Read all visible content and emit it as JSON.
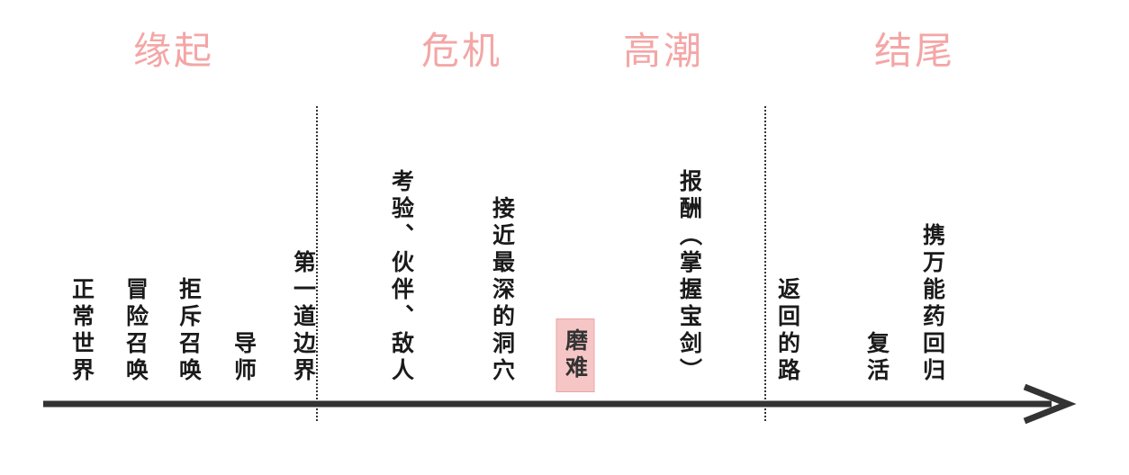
{
  "colors": {
    "stage": "#f4a6a6",
    "highlight": "#f6c6c6",
    "axis": "#333333",
    "text": "#1a1a1a"
  },
  "stages": [
    {
      "label": "缘起"
    },
    {
      "label": "危机"
    },
    {
      "label": "高潮"
    },
    {
      "label": "结尾"
    }
  ],
  "events": [
    {
      "lines": [
        "正常世界"
      ]
    },
    {
      "lines": [
        "冒险召唤"
      ]
    },
    {
      "lines": [
        "拒斥召唤"
      ]
    },
    {
      "lines": [
        "导师"
      ]
    },
    {
      "lines": [
        "第一道边界"
      ]
    },
    {
      "lines": [
        "考验、伙伴、敌人"
      ]
    },
    {
      "lines": [
        "接近最深的洞穴"
      ]
    },
    {
      "lines": [
        "磨难"
      ],
      "highlight": true
    },
    {
      "lines": [
        "报酬（掌握宝剑）"
      ]
    },
    {
      "lines": [
        "返回的路"
      ]
    },
    {
      "lines": [
        "复活"
      ]
    },
    {
      "lines": [
        "携万能药回归"
      ]
    }
  ],
  "arrow": {
    "icon": "arrow-right-icon"
  }
}
